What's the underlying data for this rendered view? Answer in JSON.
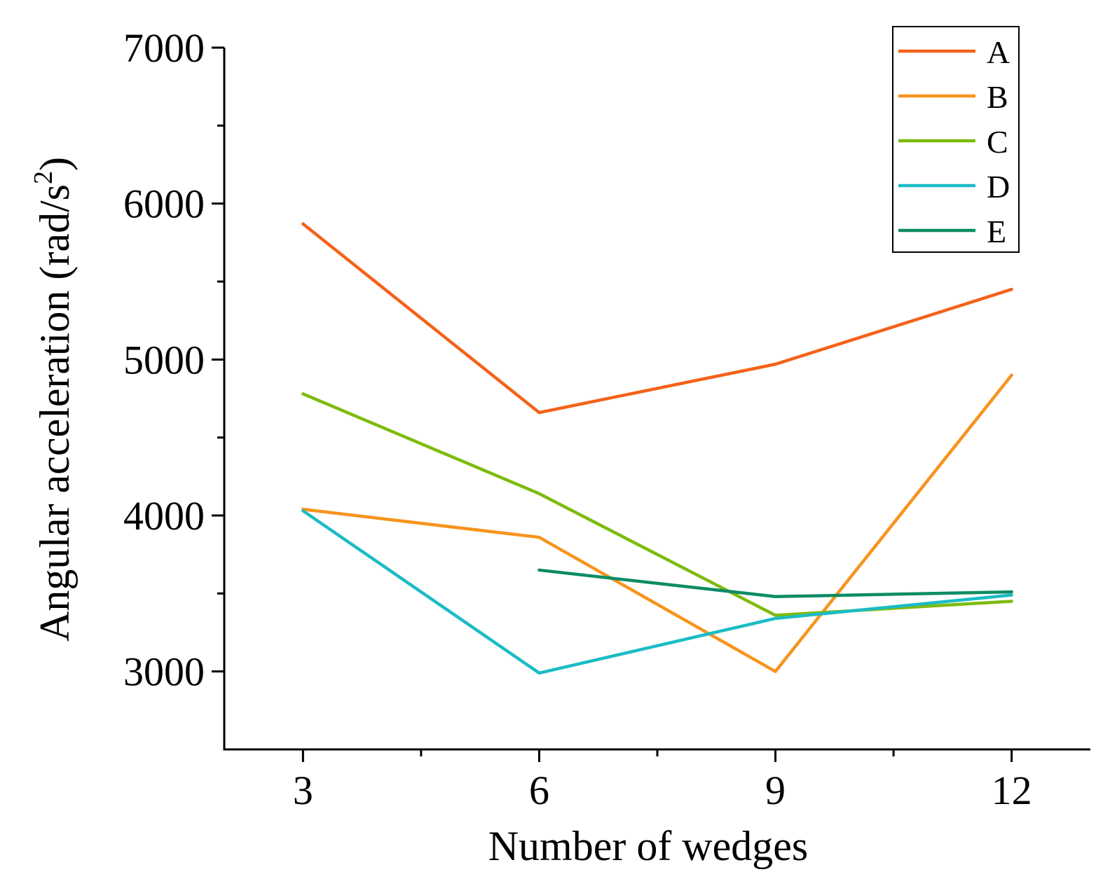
{
  "chart_data": {
    "type": "line",
    "title": "",
    "xlabel": "Number of wedges",
    "ylabel_main": "Angular acceleration (rad/s",
    "ylabel_sup": "2",
    "ylabel_close": ")",
    "x": [
      3,
      6,
      9,
      12
    ],
    "x_ticks": [
      "3",
      "6",
      "9",
      "12"
    ],
    "y_ticks": [
      "3000",
      "4000",
      "5000",
      "6000",
      "7000"
    ],
    "xlim": [
      2,
      13
    ],
    "ylim": [
      2500,
      7000
    ],
    "grid": false,
    "legend_position": "top-right",
    "series": [
      {
        "name": "A",
        "color": "#F4621A",
        "values": [
          5870,
          4660,
          4970,
          5450
        ]
      },
      {
        "name": "B",
        "color": "#F7941D",
        "values": [
          4040,
          3860,
          3000,
          4900
        ]
      },
      {
        "name": "C",
        "color": "#7DBB0E",
        "values": [
          4780,
          4140,
          3360,
          3450
        ]
      },
      {
        "name": "D",
        "color": "#1BBCC5",
        "values": [
          4030,
          2990,
          3340,
          3490
        ]
      },
      {
        "name": "E",
        "color": "#0C8C64",
        "values": [
          null,
          3650,
          3480,
          3510
        ]
      }
    ]
  }
}
